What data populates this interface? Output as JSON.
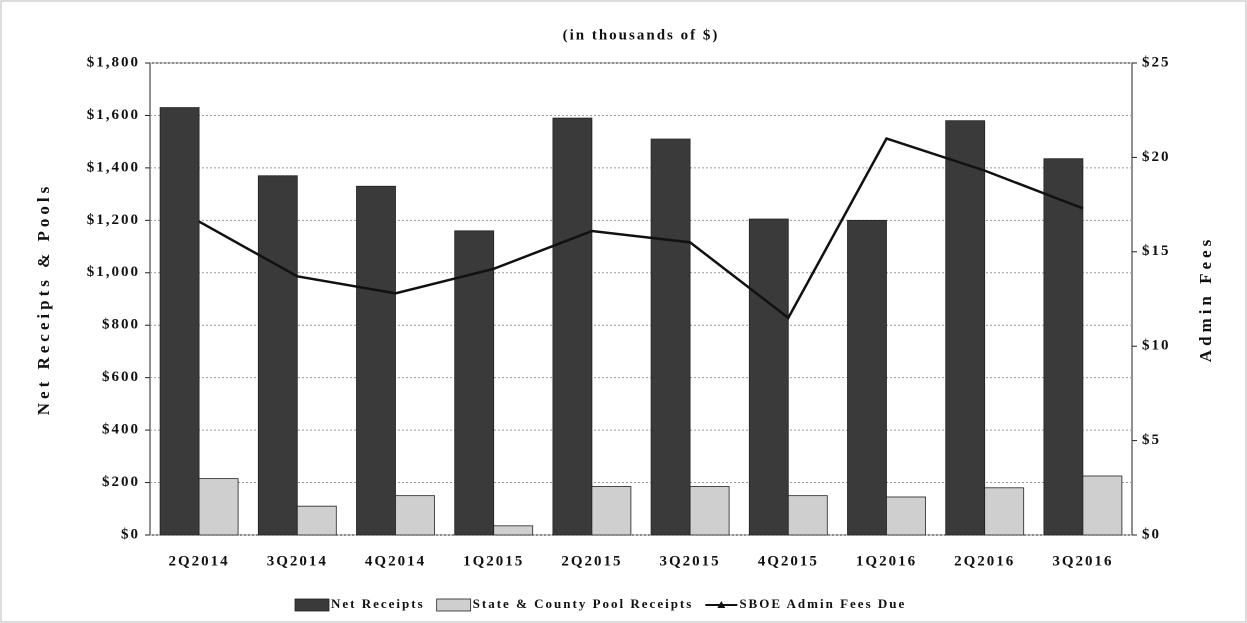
{
  "chart_data": {
    "type": "bar",
    "title": "(in thousands of $)",
    "y_label": "Net Receipts & Pools",
    "y2_label": "Admin Fees",
    "categories": [
      "2Q2014",
      "3Q2014",
      "4Q2014",
      "1Q2015",
      "2Q2015",
      "3Q2015",
      "4Q2015",
      "1Q2016",
      "2Q2016",
      "3Q2016"
    ],
    "series": [
      {
        "name": "Net Receipts",
        "color": "#3a3a3a",
        "type": "bar",
        "values": [
          1630,
          1370,
          1330,
          1160,
          1590,
          1510,
          1205,
          1200,
          1580,
          1435
        ]
      },
      {
        "name": "State & County Pool Receipts",
        "color": "#cfcfcf",
        "type": "bar",
        "values": [
          215,
          110,
          150,
          35,
          185,
          185,
          150,
          145,
          180,
          225
        ]
      },
      {
        "name": "SBOE Admin Fees Due",
        "color": "#111111",
        "type": "line",
        "axis": "y2",
        "values": [
          16.6,
          13.7,
          12.8,
          14.1,
          16.1,
          15.5,
          11.5,
          21.0,
          19.3,
          17.3
        ]
      }
    ],
    "ylim": [
      0,
      1800
    ],
    "yticks": [
      {
        "value": 0,
        "label": "$0"
      },
      {
        "value": 200,
        "label": "$200"
      },
      {
        "value": 400,
        "label": "$400"
      },
      {
        "value": 600,
        "label": "$600"
      },
      {
        "value": 800,
        "label": "$800"
      },
      {
        "value": 1000,
        "label": "$1,000"
      },
      {
        "value": 1200,
        "label": "$1,200"
      },
      {
        "value": 1400,
        "label": "$1,400"
      },
      {
        "value": 1600,
        "label": "$1,600"
      },
      {
        "value": 1800,
        "label": "$1,800"
      }
    ],
    "y2lim": [
      0,
      25
    ],
    "y2ticks": [
      {
        "value": 0,
        "label": "$0"
      },
      {
        "value": 5,
        "label": "$5"
      },
      {
        "value": 10,
        "label": "$10"
      },
      {
        "value": 15,
        "label": "$15"
      },
      {
        "value": 20,
        "label": "$20"
      },
      {
        "value": 25,
        "label": "$25"
      }
    ],
    "grid": true,
    "legend": "bottom"
  }
}
